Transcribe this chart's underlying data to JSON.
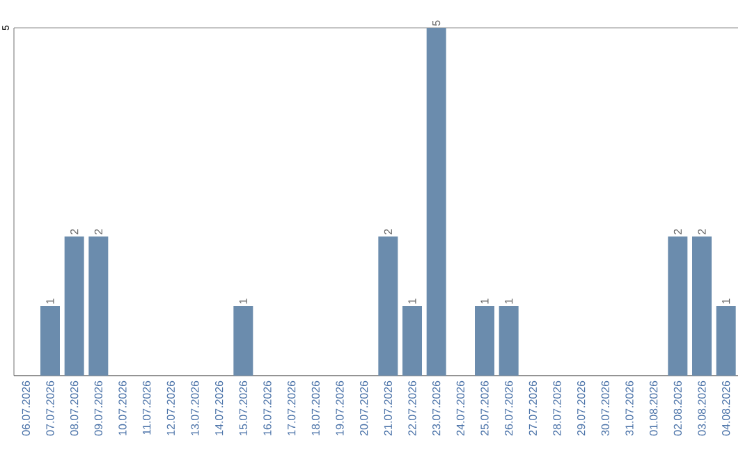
{
  "chart_data": {
    "type": "bar",
    "categories": [
      "06.07.2026",
      "07.07.2026",
      "08.07.2026",
      "09.07.2026",
      "10.07.2026",
      "11.07.2026",
      "12.07.2026",
      "13.07.2026",
      "14.07.2026",
      "15.07.2026",
      "16.07.2026",
      "17.07.2026",
      "18.07.2026",
      "19.07.2026",
      "20.07.2026",
      "21.07.2026",
      "22.07.2026",
      "23.07.2026",
      "24.07.2026",
      "25.07.2026",
      "26.07.2026",
      "27.07.2026",
      "28.07.2026",
      "29.07.2026",
      "30.07.2026",
      "31.07.2026",
      "01.08.2026",
      "02.08.2026",
      "03.08.2026",
      "04.08.2026"
    ],
    "values": [
      0,
      1,
      2,
      2,
      0,
      0,
      0,
      0,
      0,
      1,
      0,
      0,
      0,
      0,
      0,
      2,
      1,
      5,
      0,
      1,
      1,
      0,
      0,
      0,
      0,
      0,
      0,
      2,
      2,
      1
    ],
    "value_labels": [
      null,
      "1",
      "2",
      "2",
      null,
      null,
      null,
      null,
      null,
      "1",
      null,
      null,
      null,
      null,
      null,
      "2",
      "1",
      "5",
      null,
      "1",
      "1",
      null,
      null,
      null,
      null,
      null,
      null,
      "2",
      "2",
      "1"
    ],
    "color": "#6b8cad",
    "ylim": [
      0,
      5
    ],
    "yticks": [
      {
        "value": 0,
        "label": null
      },
      5
    ],
    "grid": "y"
  }
}
